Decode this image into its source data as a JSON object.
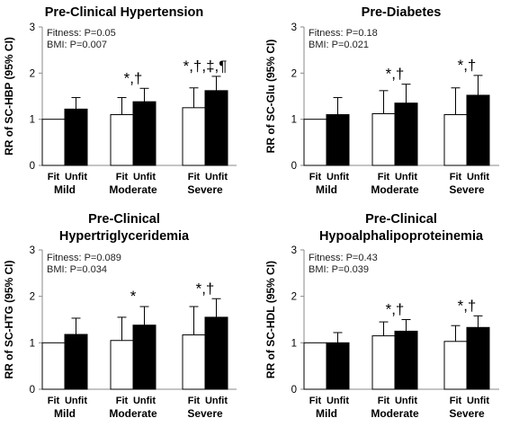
{
  "chart_data": [
    {
      "type": "bar",
      "title": [
        "Pre-Clinical Hypertension"
      ],
      "ylabel": "RR of SC-HBP (95% CI)",
      "ylim": [
        0,
        3
      ],
      "yticks": [
        "0",
        "1",
        "2",
        "3"
      ],
      "annotations": [
        "Fitness: P=0.05",
        "BMI: P=0.007"
      ],
      "categories": [
        "Mild",
        "Moderate",
        "Severe"
      ],
      "bar_labels": [
        "Fit",
        "Unfit"
      ],
      "series": [
        {
          "name": "Fit",
          "values": [
            1.0,
            1.1,
            1.25
          ],
          "ci_high": [
            1.0,
            1.47,
            1.68
          ],
          "fill": "#ffffff"
        },
        {
          "name": "Unfit",
          "values": [
            1.22,
            1.38,
            1.62
          ],
          "ci_high": [
            1.47,
            1.67,
            1.93
          ],
          "fill": "#000000"
        }
      ],
      "significance": [
        {
          "category": 1,
          "text": "*,†"
        },
        {
          "category": 2,
          "text": "*,†,‡,¶"
        }
      ]
    },
    {
      "type": "bar",
      "title": [
        "Pre-Diabetes"
      ],
      "ylabel": "RR of SC-Glu (95% CI)",
      "ylim": [
        0,
        3
      ],
      "yticks": [
        "0",
        "1",
        "2",
        "3"
      ],
      "annotations": [
        "Fitness: P=0.18",
        "BMI: P=0.021"
      ],
      "categories": [
        "Mild",
        "Moderate",
        "Severe"
      ],
      "bar_labels": [
        "Fit",
        "Unfit"
      ],
      "series": [
        {
          "name": "Fit",
          "values": [
            1.0,
            1.12,
            1.1
          ],
          "ci_high": [
            1.0,
            1.62,
            1.68
          ],
          "fill": "#ffffff"
        },
        {
          "name": "Unfit",
          "values": [
            1.1,
            1.35,
            1.52
          ],
          "ci_high": [
            1.47,
            1.76,
            1.95
          ],
          "fill": "#000000"
        }
      ],
      "significance": [
        {
          "category": 1,
          "text": "*,†"
        },
        {
          "category": 2,
          "text": "*,†"
        }
      ]
    },
    {
      "type": "bar",
      "title": [
        "Pre-Clinical",
        "Hypertriglyceridemia"
      ],
      "ylabel": "RR of SC-HTG (95% CI)",
      "ylim": [
        0,
        3
      ],
      "yticks": [
        "0",
        "1",
        "2",
        "3"
      ],
      "annotations": [
        "Fitness: P=0.089",
        "BMI: P=0.034"
      ],
      "categories": [
        "Mild",
        "Moderate",
        "Severe"
      ],
      "bar_labels": [
        "Fit",
        "Unfit"
      ],
      "series": [
        {
          "name": "Fit",
          "values": [
            1.0,
            1.05,
            1.17
          ],
          "ci_high": [
            1.0,
            1.55,
            1.78
          ],
          "fill": "#ffffff"
        },
        {
          "name": "Unfit",
          "values": [
            1.18,
            1.38,
            1.55
          ],
          "ci_high": [
            1.53,
            1.78,
            1.95
          ],
          "fill": "#000000"
        }
      ],
      "significance": [
        {
          "category": 1,
          "text": "*"
        },
        {
          "category": 2,
          "text": "*,†"
        }
      ]
    },
    {
      "type": "bar",
      "title": [
        "Pre-Clinical",
        "Hypoalphalipoproteinemia"
      ],
      "ylabel": "RR of SC-HDL (95% CI)",
      "ylim": [
        0,
        3
      ],
      "yticks": [
        "0",
        "1",
        "2",
        "3"
      ],
      "annotations": [
        "Fitness: P=0.43",
        "BMI: P=0.039"
      ],
      "categories": [
        "Mild",
        "Moderate",
        "Severe"
      ],
      "bar_labels": [
        "Fit",
        "Unfit"
      ],
      "series": [
        {
          "name": "Fit",
          "values": [
            1.0,
            1.15,
            1.03
          ],
          "ci_high": [
            1.0,
            1.45,
            1.37
          ],
          "fill": "#ffffff"
        },
        {
          "name": "Unfit",
          "values": [
            1.0,
            1.25,
            1.33
          ],
          "ci_high": [
            1.22,
            1.5,
            1.58
          ],
          "fill": "#000000"
        }
      ],
      "significance": [
        {
          "category": 1,
          "text": "*,†"
        },
        {
          "category": 2,
          "text": "*,†"
        }
      ]
    }
  ]
}
